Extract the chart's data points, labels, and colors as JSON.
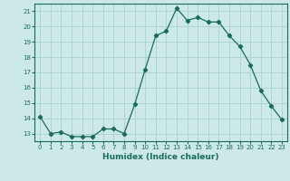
{
  "x": [
    0,
    1,
    2,
    3,
    4,
    5,
    6,
    7,
    8,
    9,
    10,
    11,
    12,
    13,
    14,
    15,
    16,
    17,
    18,
    19,
    20,
    21,
    22,
    23
  ],
  "y": [
    14.1,
    13.0,
    13.1,
    12.8,
    12.8,
    12.8,
    13.3,
    13.3,
    13.0,
    14.9,
    17.2,
    19.4,
    19.7,
    21.2,
    20.4,
    20.6,
    20.3,
    20.3,
    19.4,
    18.7,
    17.5,
    15.8,
    14.8,
    13.9
  ],
  "line_color": "#1a6b5a",
  "marker": "D",
  "marker_size": 2.2,
  "bg_color": "#cce9e7",
  "grid_color": "#aad4d2",
  "xlabel": "Humidex (Indice chaleur)",
  "ylabel_ticks": [
    13,
    14,
    15,
    16,
    17,
    18,
    19,
    20,
    21
  ],
  "xlim": [
    -0.5,
    23.5
  ],
  "ylim": [
    12.5,
    21.5
  ],
  "xlabel_color": "#1a6b5a",
  "tick_color": "#1a6b5a",
  "axis_color": "#1a6b5a"
}
